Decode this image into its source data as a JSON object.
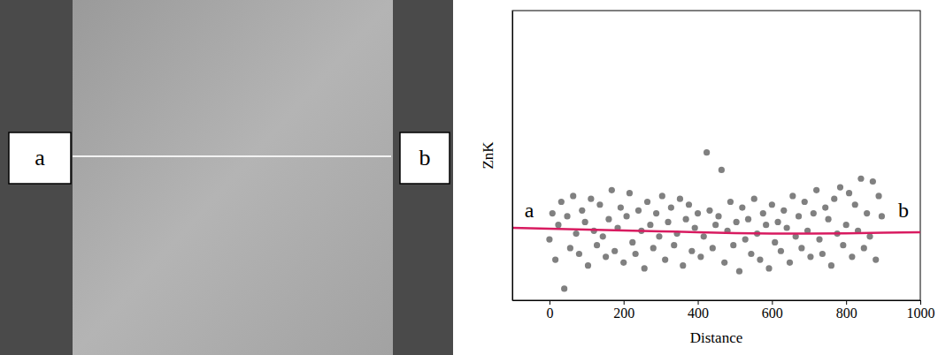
{
  "micrograph": {
    "labels": [
      "a",
      "b"
    ]
  },
  "chart_data": {
    "type": "scatter",
    "x_label": "Distance",
    "y_label": "ZnK",
    "annotations": [
      {
        "text": "a"
      },
      {
        "text": "b"
      }
    ],
    "xlim": [
      -100,
      1000
    ],
    "xticks": [
      0,
      200,
      400,
      600,
      800,
      1000
    ],
    "ylim": [
      0,
      10
    ],
    "yticks": [],
    "tick_labels": "x",
    "grid": false,
    "series": [
      {
        "type": "scatter",
        "color": "#808080",
        "marker": "circle",
        "x": [
          0,
          8,
          16,
          24,
          32,
          40,
          48,
          56,
          64,
          72,
          80,
          88,
          96,
          104,
          112,
          120,
          128,
          136,
          144,
          152,
          160,
          168,
          176,
          184,
          192,
          200,
          208,
          216,
          224,
          232,
          240,
          248,
          256,
          264,
          272,
          280,
          288,
          296,
          304,
          312,
          320,
          328,
          336,
          344,
          352,
          360,
          368,
          376,
          384,
          392,
          400,
          408,
          416,
          424,
          432,
          440,
          448,
          456,
          464,
          472,
          480,
          488,
          496,
          504,
          512,
          520,
          528,
          536,
          544,
          552,
          560,
          568,
          576,
          584,
          592,
          600,
          608,
          616,
          624,
          632,
          640,
          648,
          656,
          664,
          672,
          680,
          688,
          696,
          704,
          712,
          720,
          728,
          736,
          744,
          752,
          760,
          768,
          776,
          784,
          792,
          800,
          808,
          816,
          824,
          832,
          840,
          848,
          856,
          864,
          872,
          880,
          888,
          896
        ],
        "values": [
          2.1,
          3.0,
          1.4,
          2.6,
          3.4,
          0.4,
          2.9,
          1.8,
          3.6,
          2.3,
          1.6,
          3.1,
          2.7,
          1.2,
          3.5,
          2.4,
          1.9,
          3.3,
          2.2,
          1.5,
          2.8,
          3.8,
          1.7,
          2.5,
          3.2,
          1.3,
          2.9,
          3.7,
          2.0,
          1.6,
          3.1,
          2.4,
          1.1,
          3.4,
          2.6,
          1.8,
          3.0,
          2.2,
          3.6,
          1.4,
          2.7,
          3.2,
          1.9,
          2.3,
          3.5,
          1.2,
          2.8,
          3.3,
          1.7,
          2.5,
          3.0,
          1.5,
          2.2,
          5.1,
          3.1,
          1.8,
          2.6,
          2.9,
          4.5,
          1.3,
          2.4,
          3.4,
          1.9,
          2.7,
          1.0,
          3.2,
          2.1,
          2.8,
          1.6,
          3.5,
          2.3,
          1.4,
          3.0,
          2.6,
          1.1,
          3.3,
          2.0,
          2.7,
          1.7,
          3.1,
          2.5,
          1.3,
          3.6,
          2.2,
          2.9,
          1.8,
          3.4,
          2.4,
          1.5,
          3.0,
          3.8,
          2.1,
          1.6,
          3.2,
          2.8,
          1.2,
          3.5,
          2.3,
          3.9,
          1.9,
          2.6,
          3.7,
          1.5,
          3.3,
          2.4,
          4.2,
          1.8,
          3.0,
          2.2,
          4.1,
          1.4,
          3.6,
          2.9
        ]
      },
      {
        "type": "line",
        "color": "#d81b60",
        "line_style": "solid",
        "x": [
          -100,
          0,
          100,
          200,
          300,
          400,
          500,
          600,
          700,
          800,
          900,
          1000
        ],
        "values": [
          2.5,
          2.47,
          2.44,
          2.41,
          2.38,
          2.35,
          2.32,
          2.3,
          2.3,
          2.31,
          2.33,
          2.35
        ]
      }
    ]
  }
}
